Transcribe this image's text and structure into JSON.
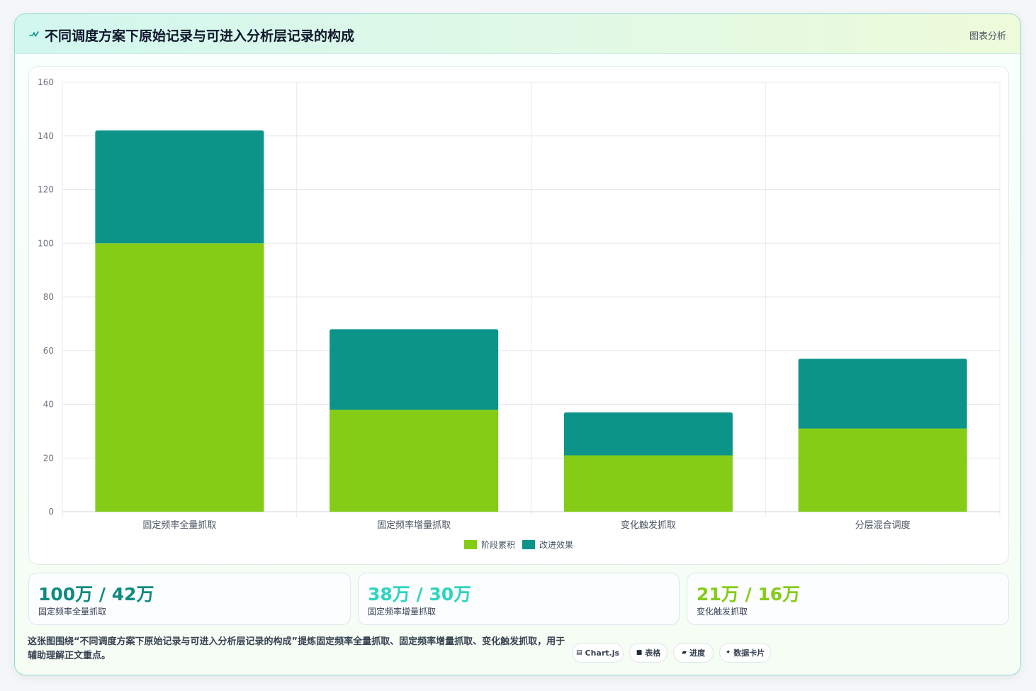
{
  "header": {
    "title": "不同调度方案下原始记录与可进入分析层记录的构成",
    "tag": "图表分析"
  },
  "chart_data": {
    "type": "bar",
    "stacked": true,
    "categories": [
      "固定频率全量抓取",
      "固定频率增量抓取",
      "变化触发抓取",
      "分层混合调度"
    ],
    "series": [
      {
        "name": "阶段累积",
        "color": "#84cc16",
        "values": [
          100,
          38,
          21,
          31
        ]
      },
      {
        "name": "改进效果",
        "color": "#0d9488",
        "values": [
          42,
          30,
          16,
          26
        ]
      }
    ],
    "ylim": [
      0,
      160
    ],
    "yticks": [
      0,
      20,
      40,
      60,
      80,
      100,
      120,
      140,
      160
    ],
    "grid": true,
    "legend": "bottom"
  },
  "stats": [
    {
      "value": "100万 / 42万",
      "label": "固定频率全量抓取",
      "color": "#0f8a80"
    },
    {
      "value": "38万 / 30万",
      "label": "固定频率增量抓取",
      "color": "#2dd4bf"
    },
    {
      "value": "21万 / 16万",
      "label": "变化触发抓取",
      "color": "#84cc16"
    }
  ],
  "footer": {
    "description": "这张图围绕“不同调度方案下原始记录与可进入分析层记录的构成”提炼固定频率全量抓取、固定频率增量抓取、变化触发抓取，用于辅助理解正文重点。",
    "chips": [
      {
        "icon": "▤",
        "label": "Chart.js"
      },
      {
        "icon": "■",
        "label": "表格"
      },
      {
        "icon": "▰",
        "label": "进度"
      },
      {
        "icon": "✦",
        "label": "数据卡片"
      }
    ]
  }
}
